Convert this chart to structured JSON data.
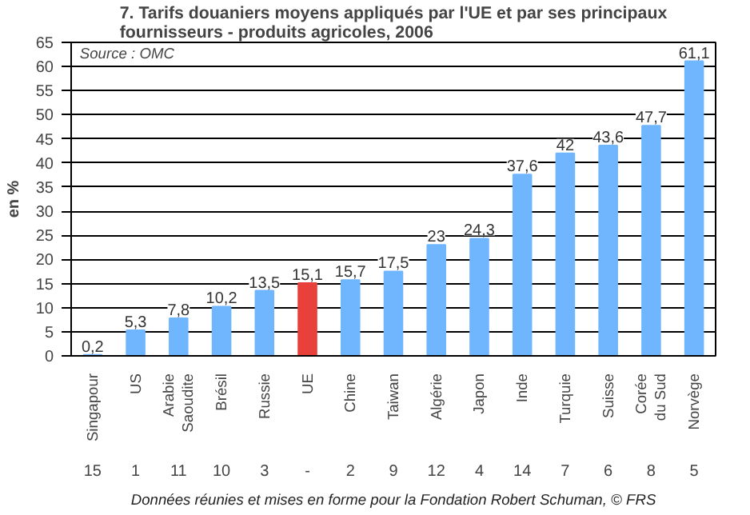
{
  "chart_data": {
    "type": "bar",
    "title": "7. Tarifs douaniers moyens appliqués par l'UE et par ses principaux fournisseurs - produits agricoles, 2006",
    "ylabel": "en %",
    "categories": [
      "Singapour",
      "US",
      "Arabie Saoudite",
      "Brésil",
      "Russie",
      "UE",
      "Chine",
      "Taiwan",
      "Algérie",
      "Japon",
      "Inde",
      "Turquie",
      "Suisse",
      "Corée du Sud",
      "Norvège"
    ],
    "values": [
      0.2,
      5.3,
      7.8,
      10.2,
      13.5,
      15.1,
      15.7,
      17.5,
      23,
      24.3,
      37.6,
      42,
      43.6,
      47.7,
      61.1
    ],
    "value_labels": [
      "0,2",
      "5,3",
      "7,8",
      "10,2",
      "13,5",
      "15,1",
      "15,7",
      "17,5",
      "23",
      "24,3",
      "37,6",
      "42",
      "43,6",
      "47,7",
      "61,1"
    ],
    "colors": [
      "#6fb6ff",
      "#6fb6ff",
      "#6fb6ff",
      "#6fb6ff",
      "#6fb6ff",
      "#e8403a",
      "#6fb6ff",
      "#6fb6ff",
      "#6fb6ff",
      "#6fb6ff",
      "#6fb6ff",
      "#6fb6ff",
      "#6fb6ff",
      "#6fb6ff",
      "#6fb6ff"
    ],
    "ylim": [
      0,
      65
    ],
    "yticks": [
      0,
      5,
      10,
      15,
      20,
      25,
      30,
      35,
      40,
      45,
      50,
      55,
      60,
      65
    ],
    "grid": "y",
    "annotations": [
      "Source : OMC",
      "15",
      "1",
      "11",
      "10",
      "3",
      "-",
      "2",
      "9",
      "12",
      "4",
      "14",
      "7",
      "6",
      "8",
      "5",
      "Données réunies et mises en forme pour la Fondation Robert Schuman, © FRS"
    ]
  }
}
